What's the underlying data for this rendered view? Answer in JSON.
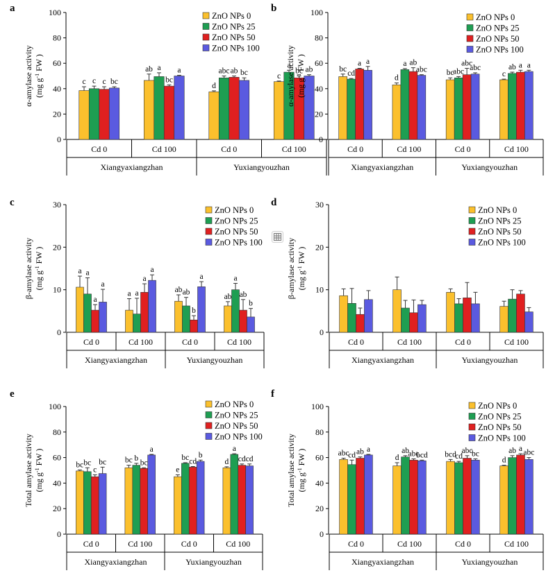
{
  "series_colors": [
    "#fbc02d",
    "#1e9e52",
    "#e02020",
    "#5a5ae0"
  ],
  "chart_data": [
    {
      "panel": "a",
      "type": "bar",
      "ylabel": "α-amylase activity",
      "yunit_pre": "(mg g",
      "yunit_sup": "-1",
      "yunit_post": " FW )",
      "ylim": [
        0,
        100
      ],
      "yticks": [
        0,
        20,
        40,
        60,
        80,
        100
      ],
      "categories": [
        "Cd 0",
        "Cd 100",
        "Cd 0",
        "Cd 100"
      ],
      "cultivars": [
        "Xiangyaxiangzhan",
        "Yuxiangyouzhan"
      ],
      "legend": [
        "ZnO NPs 0",
        "ZnO NPs 25",
        "ZnO NPs 50",
        "ZnO NPs 100"
      ],
      "series": [
        {
          "name": "ZnO NPs 0",
          "values": [
            38.5,
            46.5,
            37.5,
            45.5
          ],
          "errors": [
            3,
            5,
            0.8,
            0.5
          ],
          "labels": [
            "c",
            "ab",
            "d",
            "c"
          ]
        },
        {
          "name": "ZnO NPs 25",
          "values": [
            40,
            49.5,
            48.5,
            53
          ],
          "errors": [
            2,
            3,
            1.5,
            1.5
          ],
          "labels": [
            "c",
            "a",
            "abc",
            "a"
          ]
        },
        {
          "name": "ZnO NPs 50",
          "values": [
            39.5,
            42,
            49,
            48.5
          ],
          "errors": [
            2,
            1,
            1,
            1.5
          ],
          "labels": [
            "c",
            "bc",
            "ab",
            "bc"
          ]
        },
        {
          "name": "ZnO NPs 100",
          "values": [
            40.5,
            50,
            46.5,
            50
          ],
          "errors": [
            1,
            0.5,
            2,
            1
          ],
          "labels": [
            "bc",
            "a",
            "bc",
            "ab"
          ]
        }
      ]
    },
    {
      "panel": "b",
      "type": "bar",
      "ylabel": "α-amylase activity",
      "yunit_pre": "(mg g",
      "yunit_sup": "-1",
      "yunit_post": " FW )",
      "ylim": [
        0,
        100
      ],
      "yticks": [
        0,
        20,
        40,
        60,
        80,
        100
      ],
      "categories": [
        "Cd 0",
        "Cd 100",
        "Cd 0",
        "Cd 100"
      ],
      "cultivars": [
        "Xiangyaxiangzhan",
        "Yuxiangyouzhan"
      ],
      "legend": [
        "ZnO NPs 0",
        "ZnO NPs 25",
        "ZnO NPs 50",
        "ZnO NPs 100"
      ],
      "series": [
        {
          "name": "ZnO NPs 0",
          "values": [
            49.5,
            43,
            47,
            47
          ],
          "errors": [
            2,
            1.5,
            1.5,
            0.5
          ],
          "labels": [
            "bc",
            "d",
            "bc",
            "c"
          ]
        },
        {
          "name": "ZnO NPs 25",
          "values": [
            47.5,
            55,
            48.5,
            52
          ],
          "errors": [
            0.5,
            0.8,
            1,
            1
          ],
          "labels": [
            "cd",
            "a",
            "abc",
            "ab"
          ]
        },
        {
          "name": "ZnO NPs 50",
          "values": [
            55.5,
            53.5,
            51,
            53
          ],
          "errors": [
            0.5,
            3,
            5,
            1.5
          ],
          "labels": [
            "a",
            "ab",
            "abc",
            "a"
          ]
        },
        {
          "name": "ZnO NPs 100",
          "values": [
            54.5,
            50.5,
            51.5,
            53.5
          ],
          "errors": [
            3,
            0.5,
            1,
            1
          ],
          "labels": [
            "a",
            "abc",
            "abc",
            "a"
          ]
        }
      ]
    },
    {
      "panel": "c",
      "type": "bar",
      "ylabel": "β-amylase activity",
      "yunit_pre": "(mg g",
      "yunit_sup": "-1",
      "yunit_post": " FW )",
      "ylim": [
        0,
        30
      ],
      "yticks": [
        0,
        10,
        20,
        30
      ],
      "categories": [
        "Cd 0",
        "Cd 100",
        "Cd 0",
        "Cd 100"
      ],
      "cultivars": [
        "Xiangyaxiangzhan",
        "Yuxiangyouzhan"
      ],
      "legend": [
        "ZnO NPs 0",
        "ZnO NPs 25",
        "ZnO NPs 50",
        "ZnO NPs 100"
      ],
      "series": [
        {
          "name": "ZnO NPs 0",
          "values": [
            10.6,
            5.2,
            7.3,
            6.2
          ],
          "errors": [
            2.6,
            2.7,
            1.5,
            1
          ],
          "labels": [
            "a",
            "a",
            "ab",
            "ab"
          ]
        },
        {
          "name": "ZnO NPs 25",
          "values": [
            9,
            4.3,
            6.2,
            10
          ],
          "errors": [
            3.8,
            3.7,
            2,
            1.5
          ],
          "labels": [
            "a",
            "a",
            "ab",
            "a"
          ]
        },
        {
          "name": "ZnO NPs 50",
          "values": [
            5.2,
            9.4,
            2.9,
            5.2
          ],
          "errors": [
            1.3,
            2,
            1,
            2.5
          ],
          "labels": [
            "a",
            "a",
            "b",
            "ab"
          ]
        },
        {
          "name": "ZnO NPs 100",
          "values": [
            7.1,
            12.2,
            10.7,
            3.6
          ],
          "errors": [
            3,
            1.3,
            1.2,
            2
          ],
          "labels": [
            "a",
            "a",
            "a",
            "b"
          ]
        }
      ]
    },
    {
      "panel": "d",
      "type": "bar",
      "ylabel": "β-amylase activity",
      "yunit_pre": "(mg g",
      "yunit_sup": "-1",
      "yunit_post": " FW )",
      "ylim": [
        0,
        30
      ],
      "yticks": [
        0,
        10,
        20,
        30
      ],
      "categories": [
        "Cd 0",
        "Cd 100",
        "Cd 0",
        "Cd 100"
      ],
      "cultivars": [
        "Xiangyaxiangzhan",
        "Yuxiangyouzhan"
      ],
      "legend": [
        "ZnO NPs 0",
        "ZnO NPs 25",
        "ZnO NPs 50",
        "ZnO NPs 100"
      ],
      "series": [
        {
          "name": "ZnO NPs 0",
          "values": [
            8.6,
            10,
            9.4,
            6.1
          ],
          "errors": [
            1.6,
            3,
            0.8,
            1.2
          ],
          "labels": [
            "",
            "",
            "",
            ""
          ]
        },
        {
          "name": "ZnO NPs 25",
          "values": [
            6.8,
            5.7,
            6.7,
            7.8
          ],
          "errors": [
            3.5,
            1.8,
            1.2,
            2.2
          ],
          "labels": [
            "",
            "",
            "",
            ""
          ]
        },
        {
          "name": "ZnO NPs 50",
          "values": [
            4.2,
            4.6,
            8.1,
            9
          ],
          "errors": [
            1.5,
            3,
            3.6,
            0.8
          ],
          "labels": [
            "",
            "",
            "",
            ""
          ]
        },
        {
          "name": "ZnO NPs 100",
          "values": [
            7.7,
            6.5,
            6.7,
            4.8
          ],
          "errors": [
            2.1,
            1,
            2.7,
            1
          ],
          "labels": [
            "",
            "",
            "",
            ""
          ]
        }
      ]
    },
    {
      "panel": "e",
      "type": "bar",
      "ylabel": "Total amylase activity",
      "yunit_pre": "(mg g",
      "yunit_sup": "-1",
      "yunit_post": " FW )",
      "ylim": [
        0,
        100
      ],
      "yticks": [
        0,
        20,
        40,
        60,
        80,
        100
      ],
      "categories": [
        "Cd 0",
        "Cd 100",
        "Cd 0",
        "Cd 100"
      ],
      "cultivars": [
        "Xiangyaxiangzhan",
        "Yuxiangyouzhan"
      ],
      "legend": [
        "ZnO NPs 0",
        "ZnO NPs 25",
        "ZnO NPs 50",
        "ZnO NPs 100"
      ],
      "series": [
        {
          "name": "ZnO NPs 0",
          "values": [
            49.5,
            52,
            45,
            52
          ],
          "errors": [
            0.8,
            2,
            1.5,
            0.8
          ],
          "labels": [
            "bc",
            "bc",
            "e",
            "d"
          ]
        },
        {
          "name": "ZnO NPs 25",
          "values": [
            49,
            54,
            55.5,
            62.5
          ],
          "errors": [
            3,
            1.5,
            0.5,
            0.5
          ],
          "labels": [
            "bc",
            "b",
            "bc",
            "a"
          ]
        },
        {
          "name": "ZnO NPs 50",
          "values": [
            45,
            51.5,
            52.5,
            54
          ],
          "errors": [
            1.5,
            0.5,
            0.5,
            1
          ],
          "labels": [
            "c",
            "bc",
            "cd",
            "cd"
          ]
        },
        {
          "name": "ZnO NPs 100",
          "values": [
            47.5,
            62,
            57,
            53.5
          ],
          "errors": [
            5,
            0.5,
            1,
            1.5
          ],
          "labels": [
            "bc",
            "a",
            "b",
            "cd"
          ]
        }
      ]
    },
    {
      "panel": "f",
      "type": "bar",
      "ylabel": "Total amylase activity",
      "yunit_pre": "(mg g",
      "yunit_sup": "-1",
      "yunit_post": " FW )",
      "ylim": [
        0,
        100
      ],
      "yticks": [
        0,
        20,
        40,
        60,
        80,
        100
      ],
      "categories": [
        "Cd 0",
        "Cd 100",
        "Cd 0",
        "Cd 100"
      ],
      "cultivars": [
        "Xiangyaxiangzhan",
        "Yuxiangyouzhan"
      ],
      "legend": [
        "ZnO NPs 0",
        "ZnO NPs 25",
        "ZnO NPs 50",
        "ZnO NPs 100"
      ],
      "series": [
        {
          "name": "ZnO NPs 0",
          "values": [
            58.5,
            53.5,
            57,
            53.5
          ],
          "errors": [
            1,
            2.5,
            1.5,
            0.5
          ],
          "labels": [
            "abc",
            "d",
            "bcd",
            "d"
          ]
        },
        {
          "name": "ZnO NPs 25",
          "values": [
            54.5,
            60.5,
            56,
            60
          ],
          "errors": [
            3.5,
            1,
            1,
            1.5
          ],
          "labels": [
            "cd",
            "ab",
            "cd",
            "ab"
          ]
        },
        {
          "name": "ZnO NPs 50",
          "values": [
            59.5,
            58,
            59.5,
            62
          ],
          "errors": [
            1,
            1,
            2,
            1
          ],
          "labels": [
            "ab",
            "abc",
            "abc",
            "a"
          ]
        },
        {
          "name": "ZnO NPs 100",
          "values": [
            62,
            57.5,
            58,
            58.5
          ],
          "errors": [
            0.5,
            0.5,
            1,
            1.5
          ],
          "labels": [
            "a",
            "bcd",
            "bc",
            "abc"
          ]
        }
      ]
    }
  ]
}
